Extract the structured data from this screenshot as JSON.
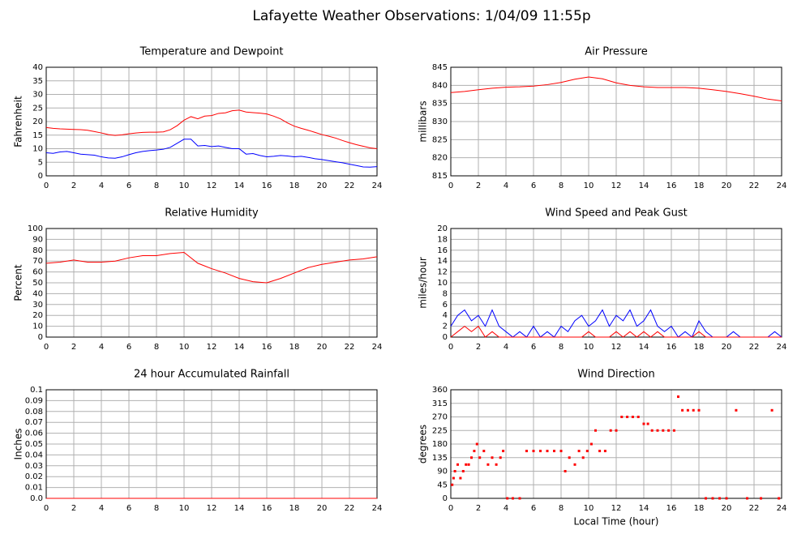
{
  "title": "Lafayette Weather Observations: 1/04/09 11:55p",
  "chart_data": [
    {
      "type": "line",
      "title": "Temperature and Dewpoint",
      "ylabel": "Fahrenheit",
      "grid": true,
      "xlim": [
        0,
        24
      ],
      "xticks": [
        0,
        2,
        4,
        6,
        8,
        10,
        12,
        14,
        16,
        18,
        20,
        22,
        24
      ],
      "ylim": [
        0,
        40
      ],
      "yticks": [
        0,
        5,
        10,
        15,
        20,
        25,
        30,
        35,
        40
      ],
      "x": [
        0,
        0.5,
        1,
        1.5,
        2,
        2.5,
        3,
        3.5,
        4,
        4.5,
        5,
        5.5,
        6,
        6.5,
        7,
        7.5,
        8,
        8.5,
        9,
        9.5,
        10,
        10.5,
        11,
        11.5,
        12,
        12.5,
        13,
        13.5,
        14,
        14.5,
        15,
        15.5,
        16,
        16.5,
        17,
        17.5,
        18,
        18.5,
        19,
        19.5,
        20,
        20.5,
        21,
        21.5,
        22,
        22.5,
        23,
        23.5,
        24
      ],
      "series": [
        {
          "color": "#ff0000",
          "values": [
            17.8,
            17.5,
            17.3,
            17.2,
            17.1,
            17,
            16.8,
            16.3,
            15.8,
            15.2,
            14.9,
            15.1,
            15.5,
            15.8,
            16,
            16.1,
            16.1,
            16.2,
            17,
            18.5,
            20.5,
            21.8,
            21,
            22,
            22.2,
            23,
            23.2,
            24,
            24.2,
            23.5,
            23.3,
            23.1,
            22.8,
            22,
            21,
            19.5,
            18.3,
            17.5,
            16.8,
            16,
            15.2,
            14.6,
            13.9,
            13,
            12.2,
            11.5,
            10.9,
            10.3,
            10
          ]
        },
        {
          "color": "#0000ff",
          "values": [
            8.5,
            8.3,
            8.8,
            9,
            8.5,
            8,
            7.8,
            7.6,
            7,
            6.6,
            6.5,
            7,
            7.8,
            8.5,
            9,
            9.3,
            9.5,
            9.8,
            10.5,
            12,
            13.5,
            13.5,
            11,
            11.2,
            10.8,
            11,
            10.5,
            10,
            10,
            8,
            8.2,
            7.5,
            7,
            7.2,
            7.5,
            7.3,
            7,
            7.2,
            6.8,
            6.3,
            6,
            5.6,
            5.2,
            4.8,
            4.3,
            3.8,
            3.3,
            3.2,
            3.4
          ]
        }
      ]
    },
    {
      "type": "line",
      "title": "Air Pressure",
      "ylabel": "millibars",
      "grid": true,
      "xlim": [
        0,
        24
      ],
      "xticks": [
        0,
        2,
        4,
        6,
        8,
        10,
        12,
        14,
        16,
        18,
        20,
        22,
        24
      ],
      "ylim": [
        815,
        845
      ],
      "yticks": [
        815,
        820,
        825,
        830,
        835,
        840,
        845
      ],
      "x": [
        0,
        1,
        2,
        3,
        4,
        5,
        6,
        7,
        8,
        9,
        10,
        11,
        12,
        13,
        14,
        15,
        16,
        17,
        18,
        19,
        20,
        21,
        22,
        23,
        24
      ],
      "series": [
        {
          "color": "#ff0000",
          "values": [
            838,
            838.3,
            838.8,
            839.2,
            839.5,
            839.6,
            839.8,
            840.2,
            840.8,
            841.7,
            842.3,
            841.8,
            840.7,
            840,
            839.6,
            839.4,
            839.4,
            839.4,
            839.2,
            838.8,
            838.3,
            837.7,
            837,
            836.2,
            835.7
          ]
        }
      ]
    },
    {
      "type": "line",
      "title": "Relative Humidity",
      "ylabel": "Percent",
      "grid": true,
      "xlim": [
        0,
        24
      ],
      "xticks": [
        0,
        2,
        4,
        6,
        8,
        10,
        12,
        14,
        16,
        18,
        20,
        22,
        24
      ],
      "ylim": [
        0,
        100
      ],
      "yticks": [
        0,
        10,
        20,
        30,
        40,
        50,
        60,
        70,
        80,
        90,
        100
      ],
      "x": [
        0,
        1,
        2,
        3,
        4,
        5,
        6,
        7,
        8,
        9,
        10,
        11,
        12,
        13,
        14,
        15,
        16,
        17,
        18,
        19,
        20,
        21,
        22,
        23,
        24
      ],
      "series": [
        {
          "color": "#ff0000",
          "values": [
            68,
            69,
            71,
            69,
            69,
            70,
            73,
            75,
            75,
            77,
            78,
            68,
            63,
            59,
            54,
            51,
            50,
            54,
            59,
            64,
            67,
            69,
            71,
            72,
            74
          ]
        }
      ]
    },
    {
      "type": "line",
      "title": "Wind Speed and Peak Gust",
      "ylabel": "miles/hour",
      "grid": true,
      "xlim": [
        0,
        24
      ],
      "xticks": [
        0,
        2,
        4,
        6,
        8,
        10,
        12,
        14,
        16,
        18,
        20,
        22,
        24
      ],
      "ylim": [
        0,
        20
      ],
      "yticks": [
        0,
        2,
        4,
        6,
        8,
        10,
        12,
        14,
        16,
        18,
        20
      ],
      "x": [
        0,
        0.5,
        1,
        1.5,
        2,
        2.5,
        3,
        3.5,
        4,
        4.5,
        5,
        5.5,
        6,
        6.5,
        7,
        7.5,
        8,
        8.5,
        9,
        9.5,
        10,
        10.5,
        11,
        11.5,
        12,
        12.5,
        13,
        13.5,
        14,
        14.5,
        15,
        15.5,
        16,
        16.5,
        17,
        17.5,
        18,
        18.5,
        19,
        19.5,
        20,
        20.5,
        21,
        21.5,
        22,
        22.5,
        23,
        23.5,
        24
      ],
      "series": [
        {
          "color": "#0000ff",
          "values": [
            2,
            4,
            5,
            3,
            4,
            2,
            5,
            2,
            1,
            0,
            1,
            0,
            2,
            0,
            1,
            0,
            2,
            1,
            3,
            4,
            2,
            3,
            5,
            2,
            4,
            3,
            5,
            2,
            3,
            5,
            2,
            1,
            2,
            0,
            1,
            0,
            3,
            1,
            0,
            0,
            0,
            1,
            0,
            0,
            0,
            0,
            0,
            1,
            0
          ]
        },
        {
          "color": "#ff0000",
          "values": [
            0,
            1,
            2,
            1,
            2,
            0,
            1,
            0,
            0,
            0,
            0,
            0,
            0,
            0,
            0,
            0,
            0,
            0,
            0,
            0,
            1,
            0,
            0,
            0,
            1,
            0,
            1,
            0,
            1,
            0,
            1,
            0,
            0,
            0,
            0,
            0,
            1,
            0,
            0,
            0,
            0,
            0,
            0,
            0,
            0,
            0,
            0,
            0,
            0
          ]
        }
      ]
    },
    {
      "type": "line",
      "title": "24 hour Accumulated Rainfall",
      "ylabel": "Inches",
      "grid": true,
      "xlim": [
        0,
        24
      ],
      "xticks": [
        0,
        2,
        4,
        6,
        8,
        10,
        12,
        14,
        16,
        18,
        20,
        22,
        24
      ],
      "ylim": [
        0,
        0.1
      ],
      "yticks": [
        {
          "value": 0,
          "label": "0.0"
        },
        0.01,
        0.02,
        0.03,
        0.04,
        0.05,
        0.06,
        0.07,
        0.08,
        0.09,
        0.1
      ],
      "x": [
        0,
        24
      ],
      "series": [
        {
          "color": "#ff0000",
          "values": [
            0,
            0
          ]
        }
      ]
    },
    {
      "type": "scatter",
      "title": "Wind Direction",
      "ylabel": "degrees",
      "xlabel": "Local Time (hour)",
      "grid": true,
      "xlim": [
        0,
        24
      ],
      "xticks": [
        0,
        2,
        4,
        6,
        8,
        10,
        12,
        14,
        16,
        18,
        20,
        22,
        24
      ],
      "ylim": [
        0,
        360
      ],
      "yticks": [
        0,
        45,
        90,
        135,
        180,
        225,
        270,
        315,
        360
      ],
      "x": [
        0.1,
        0.2,
        0.3,
        0.5,
        0.7,
        0.9,
        1.1,
        1.3,
        1.5,
        1.7,
        1.9,
        2.1,
        2.4,
        2.7,
        3.0,
        3.3,
        3.6,
        3.8,
        4.1,
        4.5,
        5.0,
        5.5,
        6.0,
        6.5,
        7.0,
        7.5,
        8.0,
        8.3,
        8.6,
        9.0,
        9.3,
        9.6,
        9.9,
        10.2,
        10.5,
        10.8,
        11.2,
        11.6,
        12.0,
        12.4,
        12.8,
        13.2,
        13.6,
        14.0,
        14.3,
        14.6,
        15.0,
        15.4,
        15.8,
        16.2,
        16.5,
        16.8,
        17.2,
        17.6,
        18.0,
        18.5,
        19.0,
        19.5,
        20.0,
        20.7,
        21.5,
        22.5,
        23.3,
        23.8
      ],
      "series": [
        {
          "color": "#ff0000",
          "values": [
            45,
            67,
            90,
            112,
            67,
            90,
            112,
            112,
            135,
            157,
            180,
            135,
            157,
            112,
            135,
            112,
            135,
            157,
            0,
            0,
            0,
            157,
            157,
            157,
            157,
            157,
            157,
            90,
            135,
            112,
            157,
            135,
            157,
            180,
            225,
            157,
            157,
            225,
            225,
            270,
            270,
            270,
            270,
            247,
            247,
            225,
            225,
            225,
            225,
            225,
            337,
            292,
            292,
            292,
            292,
            0,
            0,
            0,
            0,
            292,
            0,
            0,
            292,
            0
          ]
        }
      ]
    }
  ]
}
